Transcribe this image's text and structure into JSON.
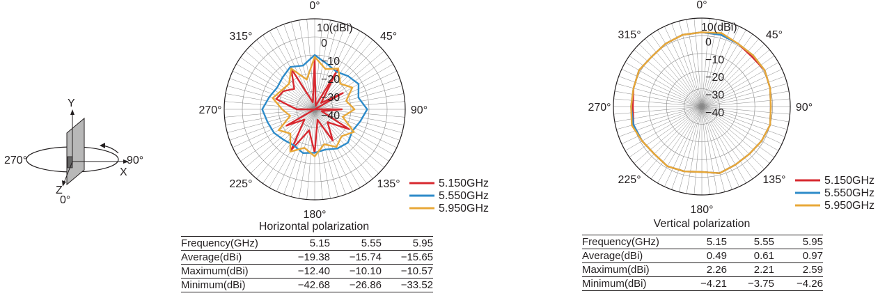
{
  "axis_diagram": {
    "y_label": "Y",
    "x_label": "X",
    "z_label": "Z",
    "left_angle": "270°",
    "right_angle": "90°",
    "bottom_angle": "0°"
  },
  "colors": {
    "s1": "#d7282f",
    "s2": "#2e8bc9",
    "s3": "#e8a838",
    "grid": "#888888",
    "text": "#231f20"
  },
  "chart_data": [
    {
      "type": "polar-line",
      "title": "Horizontal polarization",
      "unit_label": "10(dBi)",
      "angle_labels": [
        "0°",
        "45°",
        "90°",
        "135°",
        "180°",
        "225°",
        "270°",
        "315°"
      ],
      "radial_ticks": [
        "0",
        "−10",
        "−20",
        "−30",
        "−40"
      ],
      "rlim": [
        -40,
        10
      ],
      "legend": [
        "5.150GHz",
        "5.550GHz",
        "5.950GHz"
      ],
      "legend_position": "bottom-right",
      "series": [
        {
          "name": "5.150GHz",
          "angles": [
            0,
            15,
            30,
            45,
            60,
            75,
            90,
            105,
            120,
            135,
            150,
            165,
            180,
            195,
            210,
            225,
            240,
            255,
            270,
            285,
            300,
            315,
            330,
            345
          ],
          "values": [
            -12,
            -38,
            -15,
            -35,
            -22,
            -40,
            -25,
            -36,
            -18,
            -30,
            -20,
            -34,
            -16,
            -28,
            -14,
            -32,
            -22,
            -40,
            -30,
            -18,
            -20,
            -24,
            -14,
            -36
          ]
        },
        {
          "name": "5.550GHz",
          "angles": [
            0,
            15,
            30,
            45,
            60,
            75,
            90,
            105,
            120,
            135,
            150,
            165,
            180,
            195,
            210,
            225,
            240,
            255,
            270,
            285,
            300,
            315,
            330,
            345
          ],
          "values": [
            -10,
            -14,
            -16,
            -14,
            -12,
            -15,
            -11,
            -14,
            -16,
            -14,
            -15,
            -17,
            -16,
            -15,
            -17,
            -16,
            -14,
            -13,
            -11,
            -14,
            -16,
            -15,
            -13,
            -15
          ]
        },
        {
          "name": "5.950GHz",
          "angles": [
            0,
            15,
            30,
            45,
            60,
            75,
            90,
            105,
            120,
            135,
            150,
            165,
            180,
            195,
            210,
            225,
            240,
            255,
            270,
            285,
            300,
            315,
            330,
            345
          ],
          "values": [
            -11,
            -17,
            -14,
            -20,
            -16,
            -22,
            -18,
            -24,
            -15,
            -19,
            -16,
            -20,
            -14,
            -18,
            -13,
            -21,
            -17,
            -26,
            -22,
            -16,
            -19,
            -20,
            -14,
            -23
          ]
        }
      ],
      "table": {
        "headers": [
          "Frequency(GHz)",
          "5.15",
          "5.55",
          "5.95"
        ],
        "rows": [
          [
            "Average(dBi)",
            "−19.38",
            "−15.74",
            "−15.65"
          ],
          [
            "Maximum(dBi)",
            "−12.40",
            "−10.10",
            "−10.57"
          ],
          [
            "Minimum(dBi)",
            "−42.68",
            "−26.86",
            "−33.52"
          ]
        ]
      }
    },
    {
      "type": "polar-line",
      "title": "Vertical polarization",
      "unit_label": "10(dBi)",
      "angle_labels": [
        "0°",
        "45°",
        "90°",
        "135°",
        "180°",
        "225°",
        "270°",
        "315°"
      ],
      "radial_ticks": [
        "0",
        "−10",
        "−20",
        "−30",
        "−40"
      ],
      "rlim": [
        -40,
        10
      ],
      "legend": [
        "5.150GHz",
        "5.550GHz",
        "5.950GHz"
      ],
      "legend_position": "bottom-right",
      "series": [
        {
          "name": "5.150GHz",
          "angles": [
            0,
            15,
            30,
            45,
            60,
            75,
            90,
            105,
            120,
            135,
            150,
            165,
            180,
            195,
            210,
            225,
            240,
            255,
            270,
            285,
            300,
            315,
            330,
            345
          ],
          "values": [
            2,
            2,
            1,
            0,
            1,
            0,
            -1,
            0,
            -1,
            -2,
            -2,
            -1,
            -3,
            -2,
            -1,
            -2,
            -1,
            0,
            -1,
            0,
            1,
            0,
            1,
            2
          ]
        },
        {
          "name": "5.550GHz",
          "angles": [
            0,
            15,
            30,
            45,
            60,
            75,
            90,
            105,
            120,
            135,
            150,
            165,
            180,
            195,
            210,
            225,
            240,
            255,
            270,
            285,
            300,
            315,
            330,
            345
          ],
          "values": [
            2,
            2,
            1,
            1,
            1,
            0,
            -1,
            0,
            -1,
            -2,
            -2,
            -1,
            -3,
            -2,
            -1,
            -2,
            -1,
            0,
            0,
            0,
            1,
            0,
            1,
            2
          ]
        },
        {
          "name": "5.950GHz",
          "angles": [
            0,
            15,
            30,
            45,
            60,
            75,
            90,
            105,
            120,
            135,
            150,
            165,
            180,
            195,
            210,
            225,
            240,
            255,
            270,
            285,
            300,
            315,
            330,
            345
          ],
          "values": [
            2,
            3,
            1,
            1,
            1,
            0,
            -1,
            0,
            -1,
            -2,
            -2,
            -1,
            -3,
            -2,
            -1,
            -2,
            -1,
            1,
            0,
            0,
            1,
            0,
            1,
            2
          ]
        }
      ],
      "table": {
        "headers": [
          "Frequency(GHz)",
          "5.15",
          "5.55",
          "5.95"
        ],
        "rows": [
          [
            "Average(dBi)",
            "0.49",
            "0.61",
            "0.97"
          ],
          [
            "Maximum(dBi)",
            "2.26",
            "2.21",
            "2.59"
          ],
          [
            "Minimum(dBi)",
            "−4.21",
            "−3.75",
            "−4.26"
          ]
        ]
      }
    }
  ]
}
